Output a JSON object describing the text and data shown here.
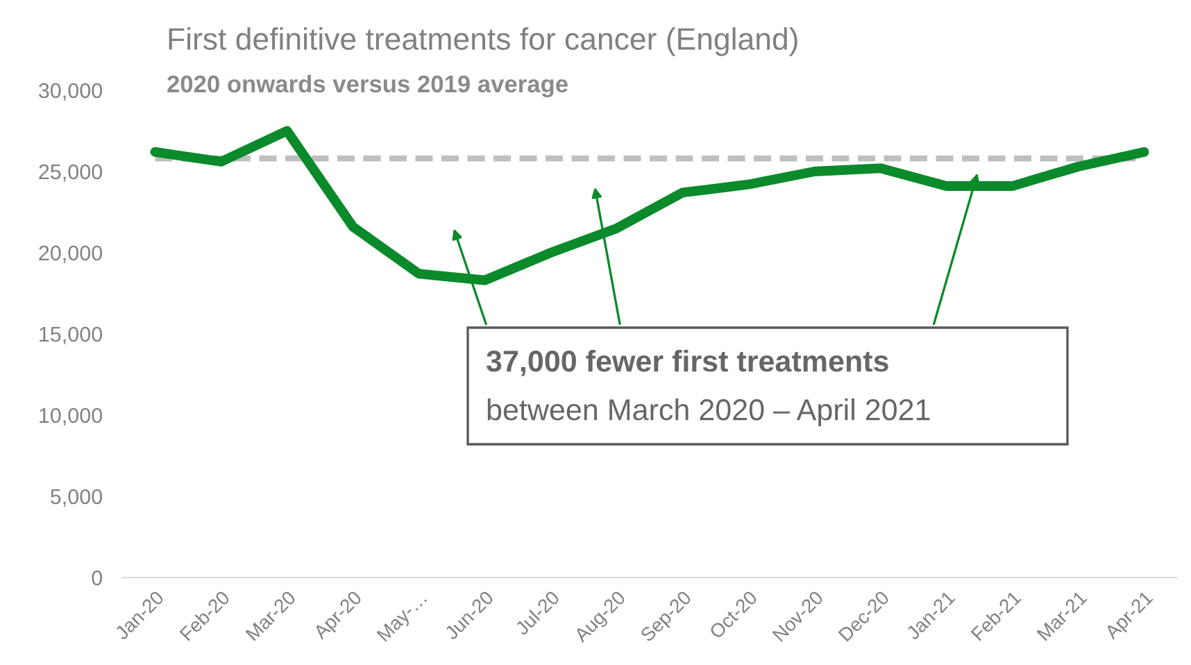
{
  "chart_data": {
    "type": "line",
    "title": "First definitive treatments for cancer (England)",
    "subtitle": "2020 onwards versus 2019 average",
    "categories": [
      "Jan-20",
      "Feb-20",
      "Mar-20",
      "Apr-20",
      "May-…",
      "Jun-20",
      "Jul-20",
      "Aug-20",
      "Sep-20",
      "Oct-20",
      "Nov-20",
      "Dec-20",
      "Jan-21",
      "Feb-21",
      "Mar-21",
      "Apr-21"
    ],
    "series": [
      {
        "color": "#0a8a2a",
        "line_style": "solid",
        "values": [
          26200,
          25600,
          27500,
          21600,
          18700,
          18300,
          20000,
          21500,
          23700,
          24200,
          25000,
          25200,
          24100,
          24100,
          25300,
          26200
        ]
      },
      {
        "color": "#bfbfbf",
        "line_style": "dashed",
        "values": [
          25800,
          25800,
          25800,
          25800,
          25800,
          25800,
          25800,
          25800,
          25800,
          25800,
          25800,
          25800,
          25800,
          25800,
          25800,
          25800
        ]
      }
    ],
    "ylim": [
      0,
      30000
    ],
    "yticks": [
      {
        "value": 0,
        "label": "0"
      },
      {
        "value": 5000,
        "label": "5,000"
      },
      {
        "value": 10000,
        "label": "10,000"
      },
      {
        "value": 15000,
        "label": "15,000"
      },
      {
        "value": 20000,
        "label": "20,000"
      },
      {
        "value": 25000,
        "label": "25,000"
      },
      {
        "value": 30000,
        "label": "30,000"
      }
    ],
    "grid": false,
    "legend": false,
    "annotations": [
      "37,000 fewer first treatments",
      "between March 2020 – April 2021"
    ]
  }
}
